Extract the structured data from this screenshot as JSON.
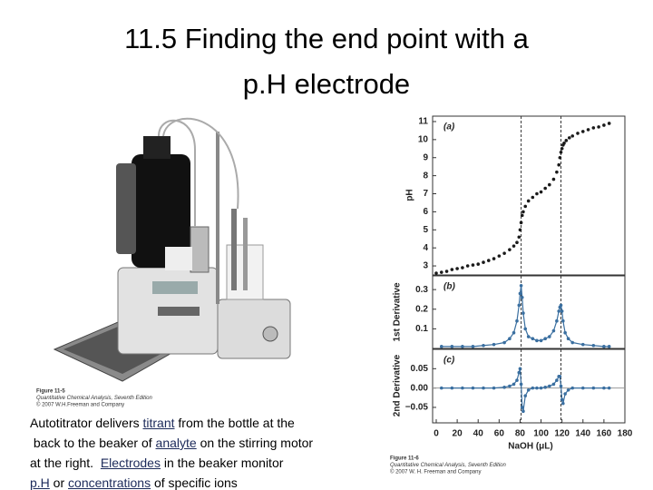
{
  "title_lines": [
    "11.5 Finding the end point with a",
    "p.H electrode"
  ],
  "photo_caption": [
    "Figure 11-5",
    "Quantitative Chemical Analysis, Seventh Edition",
    "© 2007 W.H.Freeman and Company"
  ],
  "description": {
    "lines": [
      [
        {
          "text": "Autotitrator delivers "
        },
        {
          "text": "titrant",
          "link": true
        },
        {
          "text": " from the bottle at the"
        }
      ],
      [
        {
          "text": " back to the beaker of "
        },
        {
          "text": "analyte",
          "link": true
        },
        {
          "text": " on the stirring motor"
        }
      ],
      [
        {
          "text": "at the right.  "
        },
        {
          "text": "Electrodes",
          "link": true
        },
        {
          "text": " in the beaker monitor"
        }
      ],
      [
        {
          "text": "p.H",
          "link": true
        },
        {
          "text": " or "
        },
        {
          "text": "concentrations",
          "link": true
        },
        {
          "text": " of specific ions"
        }
      ]
    ]
  },
  "chart_data": [
    {
      "type": "scatter",
      "panel_label": "(a)",
      "ylabel": "pH",
      "color": "#1a1a1a",
      "line": false,
      "x": [
        0,
        5,
        10,
        15,
        20,
        25,
        30,
        35,
        40,
        45,
        50,
        55,
        60,
        65,
        70,
        74,
        77,
        79,
        80,
        81,
        82,
        83,
        85,
        88,
        92,
        96,
        100,
        104,
        108,
        112,
        115,
        117,
        118,
        119,
        120,
        121,
        122,
        124,
        127,
        130,
        135,
        140,
        145,
        150,
        155,
        160,
        165
      ],
      "values": [
        2.6,
        2.65,
        2.7,
        2.8,
        2.85,
        2.9,
        3.0,
        3.05,
        3.1,
        3.2,
        3.3,
        3.4,
        3.55,
        3.7,
        3.9,
        4.1,
        4.3,
        4.6,
        5.0,
        5.4,
        5.8,
        6.0,
        6.3,
        6.6,
        6.8,
        7.0,
        7.1,
        7.3,
        7.5,
        7.8,
        8.2,
        8.6,
        9.0,
        9.3,
        9.5,
        9.7,
        9.8,
        9.95,
        10.1,
        10.2,
        10.35,
        10.45,
        10.55,
        10.65,
        10.7,
        10.8,
        10.9
      ],
      "xlim": [
        0,
        180
      ],
      "ylim": [
        2.5,
        11.3
      ],
      "yticks": [
        3,
        4,
        5,
        6,
        7,
        8,
        9,
        10,
        11
      ],
      "endpoints": [
        81,
        119
      ]
    },
    {
      "type": "scatter",
      "panel_label": "(b)",
      "ylabel": "1st Derivative",
      "color": "#3a6fa0",
      "line": true,
      "x": [
        5,
        15,
        25,
        35,
        45,
        55,
        65,
        70,
        74,
        77,
        79,
        80,
        81,
        82,
        83,
        85,
        88,
        92,
        96,
        100,
        104,
        108,
        112,
        115,
        117,
        118,
        119,
        120,
        121,
        123,
        126,
        130,
        140,
        150,
        160,
        165
      ],
      "values": [
        0.01,
        0.01,
        0.01,
        0.01,
        0.015,
        0.02,
        0.03,
        0.05,
        0.08,
        0.14,
        0.22,
        0.28,
        0.32,
        0.26,
        0.18,
        0.1,
        0.06,
        0.05,
        0.04,
        0.04,
        0.05,
        0.06,
        0.09,
        0.14,
        0.19,
        0.21,
        0.22,
        0.19,
        0.14,
        0.08,
        0.05,
        0.03,
        0.02,
        0.015,
        0.01,
        0.01
      ],
      "xlim": [
        0,
        180
      ],
      "ylim": [
        0,
        0.37
      ],
      "yticks": [
        0.1,
        0.2,
        0.3
      ],
      "endpoints": [
        81,
        119
      ]
    },
    {
      "type": "scatter",
      "panel_label": "(c)",
      "ylabel": "2nd Derivative",
      "xlabel": "NaOH (μL)",
      "color": "#3a6fa0",
      "line": true,
      "x": [
        5,
        15,
        25,
        35,
        45,
        55,
        65,
        70,
        74,
        77,
        79,
        80,
        81,
        82,
        83,
        85,
        88,
        92,
        96,
        100,
        104,
        108,
        112,
        115,
        117,
        118,
        119,
        120,
        121,
        123,
        126,
        130,
        140,
        150,
        160,
        165
      ],
      "values": [
        0,
        0,
        0,
        0,
        0,
        0,
        0.002,
        0.005,
        0.01,
        0.02,
        0.04,
        0.05,
        0.01,
        -0.05,
        -0.06,
        -0.02,
        -0.005,
        0,
        0,
        0,
        0.002,
        0.005,
        0.01,
        0.02,
        0.03,
        0.03,
        0.005,
        -0.03,
        -0.04,
        -0.015,
        -0.005,
        0,
        0,
        0,
        0,
        0
      ],
      "xlim": [
        0,
        180
      ],
      "ylim": [
        -0.09,
        0.1
      ],
      "yticks": [
        {
          "value": -0.05,
          "label": "−0.05"
        },
        {
          "value": 0,
          "label": "0.00"
        },
        0.05
      ],
      "xticks": [
        0,
        20,
        40,
        60,
        80,
        100,
        120,
        140,
        160,
        180
      ],
      "endpoints": [
        81,
        119
      ]
    }
  ],
  "figure_caption": [
    "Figure 11-6",
    "Quantitative Chemical Analysis, Seventh Edition",
    "© 2007 W. H. Freeman and Company"
  ]
}
